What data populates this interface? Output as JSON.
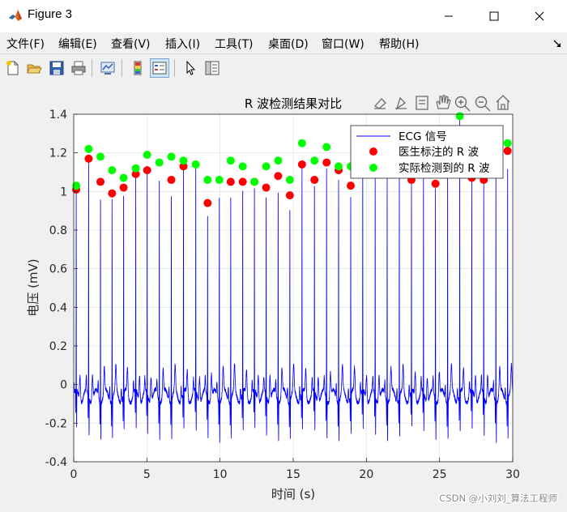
{
  "window": {
    "title": "Figure 3",
    "controls": [
      "minimize",
      "maximize",
      "close"
    ]
  },
  "menu": [
    {
      "label": "文件(F)"
    },
    {
      "label": "编辑(E)"
    },
    {
      "label": "查看(V)"
    },
    {
      "label": "插入(I)"
    },
    {
      "label": "工具(T)"
    },
    {
      "label": "桌面(D)"
    },
    {
      "label": "窗口(W)"
    },
    {
      "label": "帮助(H)"
    }
  ],
  "toolbar": {
    "buttons": [
      "new-figure-icon",
      "open-file-icon",
      "save-icon",
      "print-icon",
      "link-plot-icon",
      "colorbar-icon",
      "legend-icon",
      "pointer-icon",
      "property-inspector-icon"
    ],
    "active": "legend-icon"
  },
  "axes_toolbar": {
    "buttons": [
      "brush-icon",
      "data-tips-icon",
      "export-icon",
      "pan-icon",
      "zoom-in-icon",
      "zoom-out-icon",
      "home-icon"
    ]
  },
  "watermark": "CSDN @小刘刘_算法工程师",
  "colors": {
    "ecg": "#0000ff",
    "marked_r": "#ff0000",
    "detected_r": "#00ff00",
    "axes_bg": "#ffffff",
    "grid": "#e6e6e6"
  },
  "chart_data": {
    "type": "line",
    "title": "R 波检测结果对比",
    "xlabel": "时间 (s)",
    "ylabel": "电压 (mV)",
    "xlim": [
      0,
      30
    ],
    "ylim": [
      -0.4,
      1.4
    ],
    "xticks": [
      0,
      5,
      10,
      15,
      20,
      25,
      30
    ],
    "yticks": [
      -0.4,
      -0.2,
      0,
      0.2,
      0.4,
      0.6,
      0.8,
      1,
      1.2,
      1.4
    ],
    "grid": true,
    "legend": {
      "placement": "top-right",
      "entries": [
        "ECG 信号",
        "医生标注的 R 波",
        "实际检测到的 R 波"
      ]
    },
    "series": [
      {
        "name": "ECG 信号",
        "style": "line",
        "beats": [
          {
            "t": 0.17,
            "peak": 1.01
          },
          {
            "t": 1.02,
            "peak": 1.17
          },
          {
            "t": 1.83,
            "peak": 1.05
          },
          {
            "t": 2.62,
            "peak": 0.99
          },
          {
            "t": 3.41,
            "peak": 1.02
          },
          {
            "t": 4.24,
            "peak": 1.09
          },
          {
            "t": 5.02,
            "peak": 1.11
          },
          {
            "t": 5.85,
            "peak": 1.15
          },
          {
            "t": 6.67,
            "peak": 1.06
          },
          {
            "t": 7.5,
            "peak": 1.13
          },
          {
            "t": 8.34,
            "peak": 1.14
          },
          {
            "t": 9.15,
            "peak": 0.94
          },
          {
            "t": 9.95,
            "peak": 1.06
          },
          {
            "t": 10.73,
            "peak": 1.05
          },
          {
            "t": 11.55,
            "peak": 1.05
          },
          {
            "t": 12.35,
            "peak": 1.05
          },
          {
            "t": 13.15,
            "peak": 1.02
          },
          {
            "t": 13.97,
            "peak": 1.08
          },
          {
            "t": 14.77,
            "peak": 0.98
          },
          {
            "t": 15.6,
            "peak": 1.14
          },
          {
            "t": 16.45,
            "peak": 1.06
          },
          {
            "t": 17.28,
            "peak": 1.15
          },
          {
            "t": 18.1,
            "peak": 1.11
          },
          {
            "t": 18.93,
            "peak": 1.03
          },
          {
            "t": 19.75,
            "peak": 1.12
          },
          {
            "t": 20.6,
            "peak": 1.13
          },
          {
            "t": 21.42,
            "peak": 1.14
          },
          {
            "t": 22.25,
            "peak": 1.16
          },
          {
            "t": 23.08,
            "peak": 1.06
          },
          {
            "t": 23.9,
            "peak": 1.12
          },
          {
            "t": 24.72,
            "peak": 1.04
          },
          {
            "t": 25.55,
            "peak": 1.17
          },
          {
            "t": 26.38,
            "peak": 1.39
          },
          {
            "t": 27.2,
            "peak": 1.07
          },
          {
            "t": 28.02,
            "peak": 1.06
          },
          {
            "t": 28.85,
            "peak": 1.17
          },
          {
            "t": 29.65,
            "peak": 1.21
          }
        ]
      },
      {
        "name": "医生标注的 R 波",
        "style": "marker",
        "points": [
          [
            0.17,
            1.01
          ],
          [
            1.02,
            1.17
          ],
          [
            1.83,
            1.05
          ],
          [
            2.62,
            0.99
          ],
          [
            3.41,
            1.02
          ],
          [
            4.24,
            1.09
          ],
          [
            5.02,
            1.11
          ],
          [
            6.67,
            1.06
          ],
          [
            7.5,
            1.13
          ],
          [
            9.15,
            0.94
          ],
          [
            10.73,
            1.05
          ],
          [
            11.55,
            1.05
          ],
          [
            12.35,
            1.05
          ],
          [
            13.15,
            1.02
          ],
          [
            13.97,
            1.08
          ],
          [
            14.77,
            0.98
          ],
          [
            15.6,
            1.14
          ],
          [
            16.45,
            1.06
          ],
          [
            17.28,
            1.15
          ],
          [
            18.1,
            1.11
          ],
          [
            18.93,
            1.03
          ],
          [
            23.08,
            1.06
          ],
          [
            24.72,
            1.04
          ],
          [
            27.2,
            1.07
          ],
          [
            28.02,
            1.06
          ],
          [
            29.65,
            1.21
          ]
        ]
      },
      {
        "name": "实际检测到的 R 波",
        "style": "marker",
        "points": [
          [
            0.17,
            1.03
          ],
          [
            1.02,
            1.22
          ],
          [
            1.83,
            1.18
          ],
          [
            2.62,
            1.11
          ],
          [
            3.41,
            1.07
          ],
          [
            4.24,
            1.12
          ],
          [
            5.02,
            1.19
          ],
          [
            5.85,
            1.15
          ],
          [
            6.67,
            1.18
          ],
          [
            7.5,
            1.16
          ],
          [
            8.34,
            1.14
          ],
          [
            9.15,
            1.06
          ],
          [
            9.95,
            1.06
          ],
          [
            10.73,
            1.16
          ],
          [
            11.55,
            1.13
          ],
          [
            12.35,
            1.05
          ],
          [
            13.15,
            1.13
          ],
          [
            13.97,
            1.16
          ],
          [
            14.77,
            1.06
          ],
          [
            15.6,
            1.25
          ],
          [
            16.45,
            1.16
          ],
          [
            17.28,
            1.23
          ],
          [
            18.1,
            1.13
          ],
          [
            18.93,
            1.13
          ],
          [
            26.38,
            1.39
          ],
          [
            29.65,
            1.25
          ]
        ]
      }
    ]
  }
}
